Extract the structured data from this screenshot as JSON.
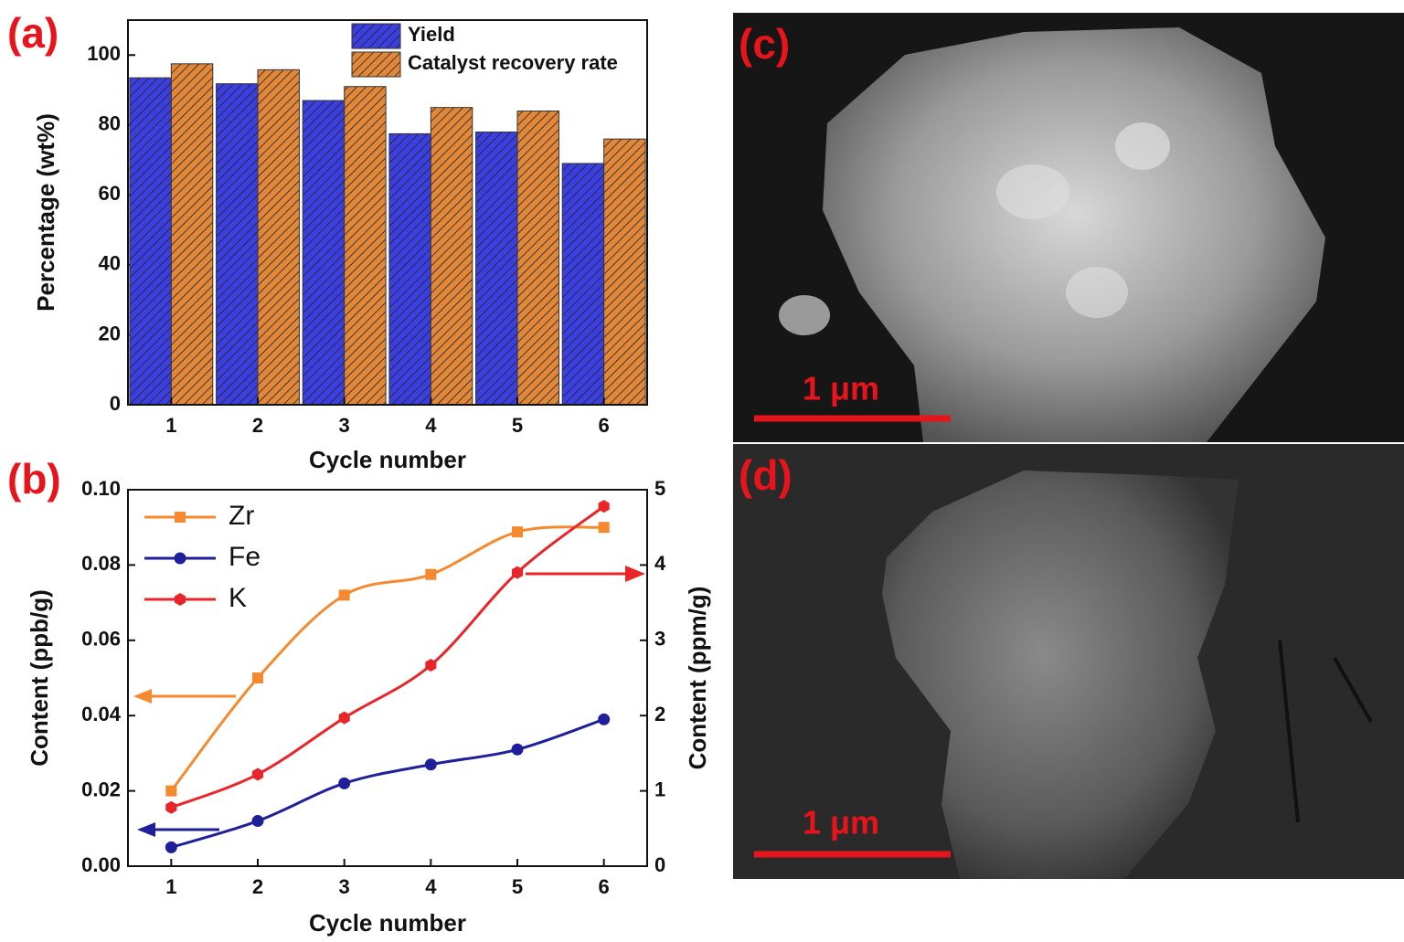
{
  "chart_data": [
    {
      "type": "bar",
      "panel_label": "(a)",
      "x_label": "Cycle number",
      "y_label": "Percentage (wt%)",
      "categories": [
        "1",
        "2",
        "3",
        "4",
        "5",
        "6"
      ],
      "series": [
        {
          "name": "Yield",
          "color": "#3b3fe0",
          "values": [
            93.5,
            91.8,
            87,
            77.5,
            78,
            69
          ]
        },
        {
          "name": "Catalyst recovery rate",
          "color": "#e0873a",
          "values": [
            97.5,
            95.8,
            91,
            85,
            84,
            76
          ]
        }
      ],
      "ylim": [
        0,
        110
      ],
      "yticks": [
        0,
        20,
        40,
        60,
        80,
        100
      ],
      "hatch": true,
      "legend": "top-right"
    },
    {
      "type": "line",
      "panel_label": "(b)",
      "x_label": "Cycle number",
      "y_label": "Content (ppb/g)",
      "y2_label": "Content (ppm/g)",
      "x": [
        1,
        2,
        3,
        4,
        5,
        6
      ],
      "xlim": [
        0.5,
        6.5
      ],
      "xticks": [
        1,
        2,
        3,
        4,
        5,
        6
      ],
      "ylim": [
        0,
        0.1
      ],
      "yticks": [
        {
          "value": 0,
          "label": "0.00"
        },
        {
          "value": 0.02,
          "label": "0.02"
        },
        {
          "value": 0.04,
          "label": "0.04"
        },
        {
          "value": 0.06,
          "label": "0.06"
        },
        {
          "value": 0.08,
          "label": "0.08"
        },
        {
          "value": 0.1,
          "label": "0.10"
        }
      ],
      "y2lim": [
        0,
        5
      ],
      "y2ticks": [
        0,
        1,
        2,
        3,
        4,
        5
      ],
      "series": [
        {
          "name": "Zr",
          "color": "#f5892e",
          "marker": "square",
          "values": [
            0.02,
            0.05,
            0.072,
            0.0775,
            0.0888,
            0.09
          ]
        },
        {
          "name": "Fe",
          "color": "#1f1f9a",
          "marker": "circle",
          "values": [
            0.005,
            0.012,
            0.022,
            0.027,
            0.031,
            0.039
          ]
        },
        {
          "name": "K",
          "color": "#e8262a",
          "marker": "hexagon",
          "axis": "y2",
          "values": [
            0.78,
            1.22,
            1.97,
            2.67,
            3.9,
            4.78
          ]
        }
      ],
      "smooth": true,
      "legend": "top-left"
    }
  ],
  "images": [
    {
      "label": "(c)",
      "scale_bar": "1 μm"
    },
    {
      "label": "(d)",
      "scale_bar": "1 μm"
    }
  ]
}
